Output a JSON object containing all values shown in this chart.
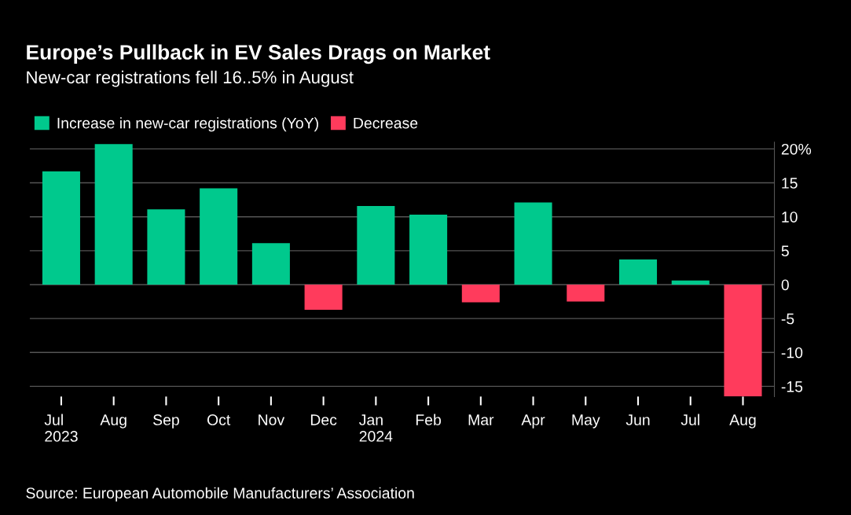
{
  "chart_data": {
    "type": "bar",
    "title": "Europe’s Pullback in EV Sales Drags on Market",
    "subtitle": "New-car registrations fell 16..5% in August",
    "categories": [
      "Jul\n2023",
      "Aug",
      "Sep",
      "Oct",
      "Nov",
      "Dec",
      "Jan\n2024",
      "Feb",
      "Mar",
      "Apr",
      "May",
      "Jun",
      "Jul",
      "Aug"
    ],
    "series": [
      {
        "name": "Increase in new-car registrations (YoY)",
        "color": "#00c98d",
        "values": [
          16.7,
          20.7,
          11.1,
          14.2,
          6.1,
          null,
          11.6,
          10.3,
          null,
          12.1,
          null,
          3.7,
          0.6,
          null
        ]
      },
      {
        "name": "Decrease",
        "color": "#ff3b5c",
        "values": [
          null,
          null,
          null,
          null,
          null,
          -3.7,
          null,
          null,
          -2.6,
          null,
          -2.5,
          null,
          null,
          -16.5
        ]
      }
    ],
    "ylim": [
      -16.5,
      21
    ],
    "yticks": [
      -15,
      -10,
      -5,
      0,
      5,
      10,
      15,
      {
        "value": 20,
        "label": "20%"
      }
    ],
    "grid": "y",
    "legend": "top left",
    "annotations": [
      "Source: European Automobile Manufacturers’ Association"
    ]
  }
}
